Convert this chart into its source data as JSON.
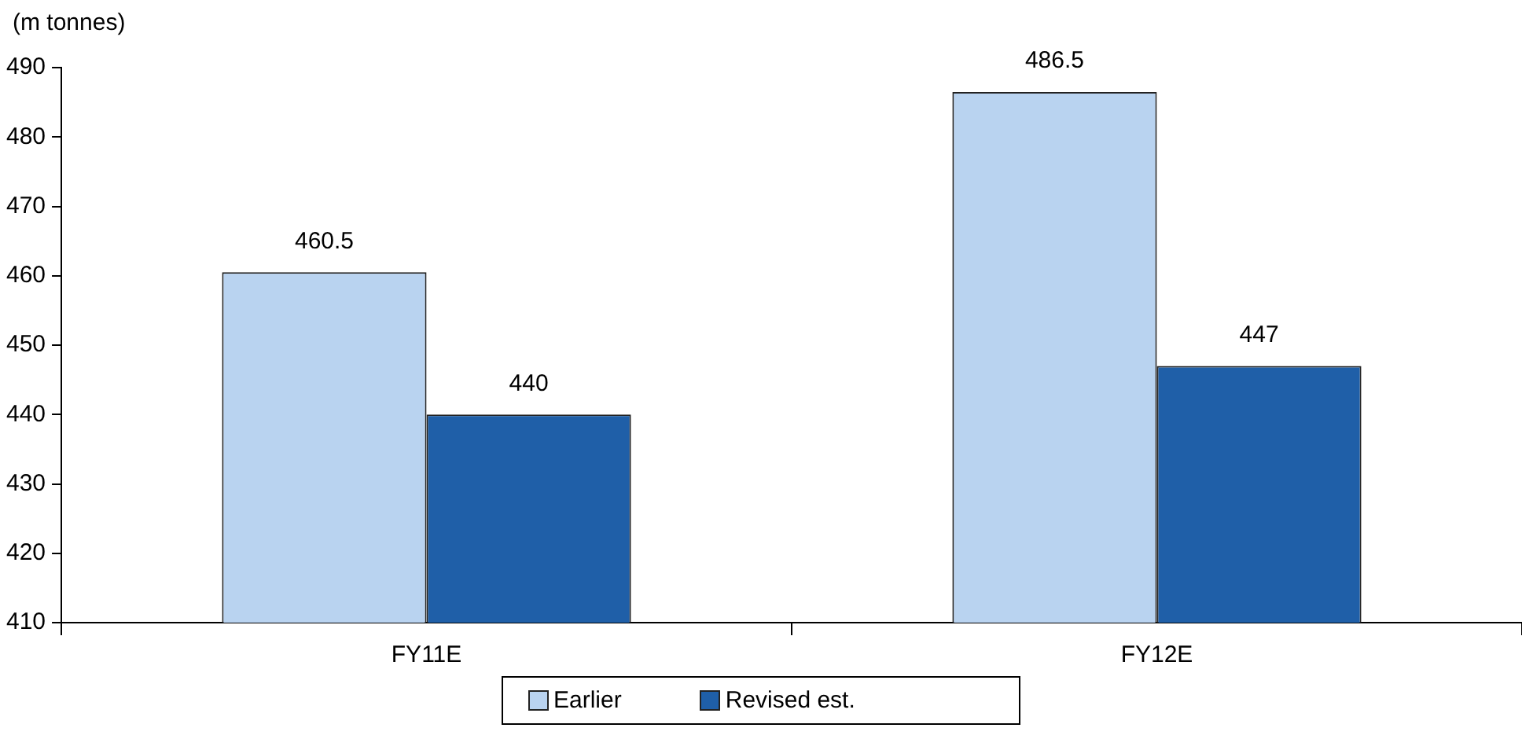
{
  "chart_data": {
    "type": "bar",
    "ylabel": "(m tonnes)",
    "categories": [
      "FY11E",
      "FY12E"
    ],
    "series": [
      {
        "name": "Earlier",
        "color": "#b9d3f0",
        "values": [
          460.5,
          486.5
        ]
      },
      {
        "name": "Revised est.",
        "color": "#1f5fa8",
        "values": [
          440,
          447
        ]
      }
    ],
    "ylim": [
      410,
      490
    ],
    "yticks": [
      410,
      420,
      430,
      440,
      450,
      460,
      470,
      480,
      490
    ],
    "grid": false,
    "legend": "bottom",
    "data_labels": true
  }
}
